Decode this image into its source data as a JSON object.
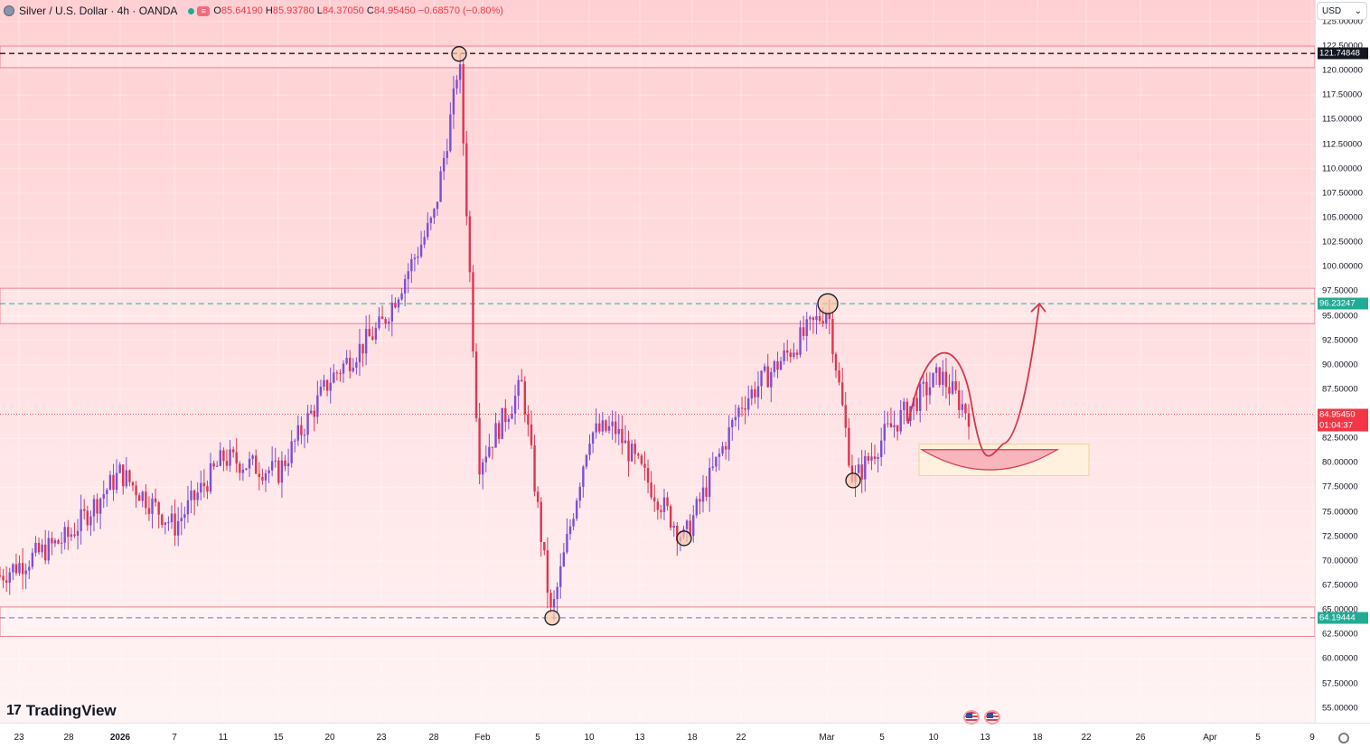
{
  "header": {
    "symbol": "Silver / U.S. Dollar · 4h · OANDA",
    "o_key": "O",
    "o_val": "85.64190",
    "h_key": "H",
    "h_val": "85.93780",
    "l_key": "L",
    "l_val": "84.37050",
    "c_key": "C",
    "c_val": "84.95450",
    "change": "−0.68570 (−0.80%)",
    "flag_label": "≡"
  },
  "currency": {
    "label": "USD",
    "chevron": "⌄"
  },
  "logo": {
    "mark": "17",
    "text": "TradingView"
  },
  "price_axis": {
    "ticks": [
      "125.00000",
      "122.50000",
      "120.00000",
      "117.50000",
      "115.00000",
      "112.50000",
      "110.00000",
      "107.50000",
      "105.00000",
      "102.50000",
      "100.00000",
      "97.50000",
      "95.00000",
      "92.50000",
      "90.00000",
      "87.50000",
      "85.00000",
      "82.50000",
      "80.00000",
      "77.50000",
      "75.00000",
      "72.50000",
      "70.00000",
      "67.50000",
      "65.00000",
      "62.50000",
      "60.00000",
      "57.50000",
      "55.00000"
    ],
    "tick_values": [
      125,
      122.5,
      120,
      117.5,
      115,
      112.5,
      110,
      107.5,
      105,
      102.5,
      100,
      97.5,
      95,
      92.5,
      90,
      87.5,
      85,
      82.5,
      80,
      77.5,
      75,
      72.5,
      70,
      67.5,
      65,
      62.5,
      60,
      57.5,
      55
    ],
    "badges": [
      {
        "text": "121.74848",
        "value": 121.74848,
        "color": "#131722"
      },
      {
        "text": "96.23247",
        "value": 96.23247,
        "color": "#22ab94"
      },
      {
        "text": "84.95450",
        "value": 84.9545,
        "color": "#f23645"
      },
      {
        "text": "01:04:37",
        "value": 83.85,
        "color": "#f23645"
      },
      {
        "text": "64.19444",
        "value": 64.19444,
        "color": "#22ab94"
      }
    ]
  },
  "time_axis": {
    "labels": [
      "23",
      "28",
      "2026",
      "7",
      "11",
      "15",
      "20",
      "23",
      "28",
      "Feb",
      "5",
      "10",
      "13",
      "18",
      "22",
      "Mar",
      "5",
      "10",
      "13",
      "18",
      "22",
      "26",
      "Apr",
      "5",
      "9"
    ],
    "bold_labels": [
      "2026"
    ]
  },
  "chart_data": {
    "type": "candlestick",
    "symbol": "Silver / U.S. Dollar",
    "interval": "4h",
    "source": "OANDA",
    "last_price": 84.9545,
    "open": 85.6419,
    "high": 85.9378,
    "low": 84.3705,
    "close": 84.9545,
    "change": -0.6857,
    "change_pct": -0.8,
    "y_range": [
      53.5,
      127.2
    ],
    "dates": [
      "Dec 19",
      "Dec 24",
      "Dec 29",
      "Jan 2",
      "Jan 7",
      "Jan 12",
      "Jan 16",
      "Jan 21",
      "Jan 26",
      "Jan 29",
      "Jan 30",
      "Feb 2",
      "Feb 5",
      "Feb 6",
      "Feb 10",
      "Feb 13",
      "Feb 17",
      "Feb 23",
      "Feb 27",
      "Mar 2",
      "Mar 3",
      "Mar 6",
      "Mar 10",
      "Mar 12"
    ],
    "prices": [
      68.5,
      72.5,
      79.0,
      73.5,
      80.5,
      79.0,
      88.5,
      94.0,
      105.0,
      117.0,
      121.7,
      80.0,
      88.0,
      64.2,
      83.0,
      83.5,
      72.2,
      86.0,
      91.0,
      95.8,
      78.0,
      83.0,
      89.0,
      84.95
    ],
    "horizontal_levels": [
      {
        "value": 121.74848,
        "style": "dashed",
        "color": "#131722"
      },
      {
        "value": 96.23247,
        "style": "dashed",
        "color": "#22ab94"
      },
      {
        "value": 64.19444,
        "style": "dashed",
        "color": "#5b7fb5"
      }
    ],
    "zones": [
      {
        "top": 122.5,
        "bottom": 120.3
      },
      {
        "top": 97.8,
        "bottom": 94.2
      },
      {
        "top": 65.3,
        "bottom": 62.3
      }
    ],
    "marked_pivots": [
      121.7,
      96.23,
      78.2,
      72.3,
      64.2
    ],
    "projection_target": 96.23,
    "demand_zone": {
      "top": 81.9,
      "bottom": 78.7
    }
  }
}
